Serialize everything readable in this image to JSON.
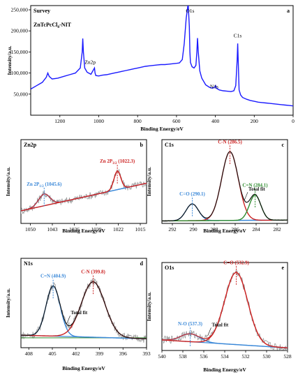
{
  "chart_data": [
    {
      "id": "a",
      "type": "line",
      "title": "Survey",
      "panel_letter": "a",
      "sample_label": "ZnTcPcCl",
      "sample_label_sub": "8",
      "sample_label_suffix": "-NIT",
      "xlabel": "Binding Energy/eV",
      "ylabel": "Intensity/a.u.",
      "xlim": [
        1350,
        0
      ],
      "ylim": [
        0,
        260000
      ],
      "xticks": [
        1200,
        1000,
        800,
        600,
        400,
        200,
        0
      ],
      "yticks": [
        50000,
        100000,
        150000,
        200000,
        250000
      ],
      "ytick_labels": [
        "50,000",
        "100,000",
        "150,000",
        "200,000",
        "250,000"
      ],
      "grid": false,
      "color": "#1a1aff",
      "series": [
        {
          "x": [
            1350,
            1320,
            1290,
            1270,
            1262,
            1255,
            1240,
            1210,
            1180,
            1150,
            1120,
            1095,
            1085,
            1082,
            1079,
            1072,
            1060,
            1040,
            1022,
            1019,
            1015,
            1000,
            980,
            960,
            940,
            920,
            900,
            880,
            860,
            840,
            820,
            800,
            780,
            760,
            740,
            720,
            700,
            680,
            660,
            640,
            620,
            600,
            585,
            570,
            560,
            550,
            540,
            534,
            531,
            528,
            520,
            510,
            500,
            495,
            492,
            488,
            480,
            470,
            450,
            430,
            415,
            405,
            399,
            395,
            380,
            360,
            340,
            320,
            305,
            295,
            288,
            285,
            282,
            278,
            270,
            260,
            240,
            220,
            200,
            180,
            160,
            140,
            120,
            100,
            80,
            60,
            40,
            20,
            0
          ],
          "y": [
            62000,
            70000,
            78000,
            90000,
            100000,
            92000,
            86000,
            88000,
            92000,
            96000,
            100000,
            112000,
            150000,
            182000,
            150000,
            112000,
            102000,
            97000,
            112000,
            100000,
            94000,
            93000,
            95000,
            96000,
            98000,
            100000,
            102000,
            104000,
            106000,
            108000,
            110000,
            112000,
            114000,
            116000,
            117000,
            118000,
            119000,
            120000,
            120000,
            121000,
            122000,
            123000,
            124000,
            132000,
            170000,
            230000,
            265000,
            210000,
            150000,
            125000,
            115000,
            112000,
            118000,
            150000,
            183000,
            150000,
            105000,
            88000,
            72000,
            66000,
            64000,
            66000,
            70000,
            64000,
            60000,
            58000,
            57000,
            56000,
            58000,
            70000,
            130000,
            170000,
            120000,
            60000,
            48000,
            42000,
            38000,
            35000,
            33000,
            31000,
            30000,
            29000,
            28000,
            27000,
            26000,
            25000,
            24000,
            23000,
            22000
          ]
        }
      ],
      "annotations": [
        {
          "text": "O1s",
          "x": 530,
          "y": 260000
        },
        {
          "text": "C1s",
          "x": 285,
          "y": 178000
        },
        {
          "text": "Zn2p",
          "x": 1022,
          "y": 112000
        },
        {
          "text": "N1s",
          "x": 399,
          "y": 70000
        }
      ]
    },
    {
      "id": "b",
      "type": "line",
      "title": "Zn2p",
      "panel_letter": "b",
      "xlabel": "Binding Energy/eV",
      "ylabel": "Intensity/a.u.",
      "xlim": [
        1053,
        1013
      ],
      "ylim": [
        0,
        100
      ],
      "xticks": [
        1050,
        1043,
        1036,
        1029,
        1022,
        1015
      ],
      "raw_color": "#9a9a9a",
      "fit_color": "#cc2222",
      "baseline_color": "#3a88d8",
      "background_color": "#3a88d8",
      "baseline": {
        "x": [
          1053,
          1013
        ],
        "y": [
          15,
          48
        ]
      },
      "peaks": [
        {
          "center": 1045.6,
          "height": 14,
          "width": 1.8,
          "color": "#3a88d8"
        },
        {
          "center": 1022.3,
          "height": 22,
          "width": 1.1,
          "color": "#cc2222"
        }
      ],
      "annotations": [
        {
          "text": "Zn 2P",
          "sub": "1/2",
          "value": " (1045.6)",
          "x": 1045.6,
          "color": "#3a88d8"
        },
        {
          "text": "Zn 2P",
          "sub": "3/2",
          "value": " (1022.3)",
          "x": 1022.3,
          "color": "#cc2222"
        }
      ]
    },
    {
      "id": "c",
      "type": "line",
      "title": "C1s",
      "panel_letter": "c",
      "xlabel": "Binding Energy/eV",
      "ylabel": "Intensity/a.u.",
      "xlim": [
        293,
        281
      ],
      "ylim": [
        0,
        100
      ],
      "xticks": [
        292,
        290,
        288,
        286,
        284,
        282
      ],
      "raw_color": "#9a9a9a",
      "fit_color": "#111111",
      "baseline_color": "#3a88d8",
      "baseline": {
        "x": [
          293,
          281
        ],
        "y": [
          3,
          4
        ]
      },
      "peaks": [
        {
          "center": 290.1,
          "height": 20,
          "width": 0.6,
          "color": "#3a88d8"
        },
        {
          "center": 286.5,
          "height": 82,
          "width": 0.8,
          "color": "#cc2222"
        },
        {
          "center": 284.1,
          "height": 30,
          "width": 0.55,
          "color": "#2e8b2e"
        }
      ],
      "annotations": [
        {
          "text": "C=O (290.1)",
          "x": 290.1,
          "color": "#3a88d8"
        },
        {
          "text": "C-N (286.5)",
          "x": 286.5,
          "color": "#cc2222"
        },
        {
          "text": "C=N (284.1)",
          "x": 284.1,
          "color": "#2e8b2e"
        },
        {
          "text": "Total fit",
          "x": 285.0,
          "color": "#111111"
        }
      ]
    },
    {
      "id": "d",
      "type": "line",
      "title": "N1s",
      "panel_letter": "d",
      "xlabel": "Binding Energy/eV",
      "ylabel": "Intensity/a.u.",
      "xlim": [
        409,
        393
      ],
      "ylim": [
        0,
        100
      ],
      "xticks": [
        408,
        405,
        402,
        399,
        396,
        393
      ],
      "xtick_labels": [
        "408",
        "405",
        "402",
        "399",
        "396",
        "393"
      ],
      "raw_color": "#9a9a9a",
      "fit_color": "#111111",
      "baseline_color": "#3a88d8",
      "background_color": "#2e8b2e",
      "baseline": {
        "x": [
          409,
          393
        ],
        "y": [
          14,
          10
        ]
      },
      "peaks": [
        {
          "center": 404.9,
          "height": 56,
          "width": 0.9,
          "color": "#3a88d8"
        },
        {
          "center": 399.8,
          "height": 62,
          "width": 1.5,
          "color": "#cc2222"
        }
      ],
      "annotations": [
        {
          "text": "C=N (404.9)",
          "x": 404.9,
          "color": "#3a88d8"
        },
        {
          "text": "C-N (399.8)",
          "x": 399.8,
          "color": "#cc2222"
        },
        {
          "text": "Total fit",
          "x": 403.0,
          "color": "#111111"
        }
      ]
    },
    {
      "id": "e",
      "type": "line",
      "title": "O1s",
      "panel_letter": "e",
      "xlabel": "Binding Energy/eV",
      "ylabel": "Intensity/a.u.",
      "xlim": [
        540,
        528
      ],
      "ylim": [
        0,
        100
      ],
      "xticks": [
        540,
        538,
        536,
        534,
        532,
        530,
        528
      ],
      "raw_color": "#9a9a9a",
      "fit_color": "#cc2222",
      "baseline_color": "#3a88d8",
      "baseline": {
        "x": [
          540,
          528
        ],
        "y": [
          12,
          3
        ]
      },
      "peaks": [
        {
          "center": 537.3,
          "height": 9,
          "width": 0.9,
          "color": "#3a88d8"
        },
        {
          "center": 532.9,
          "height": 82,
          "width": 1.1,
          "color": "#cc2222"
        }
      ],
      "annotations": [
        {
          "text": "N-O (537.3)",
          "x": 537.3,
          "color": "#3a88d8"
        },
        {
          "text": "C=O (532.9)",
          "x": 532.9,
          "color": "#cc2222"
        },
        {
          "text": "Total fit",
          "x": 535.5,
          "color": "#111111"
        }
      ]
    }
  ]
}
